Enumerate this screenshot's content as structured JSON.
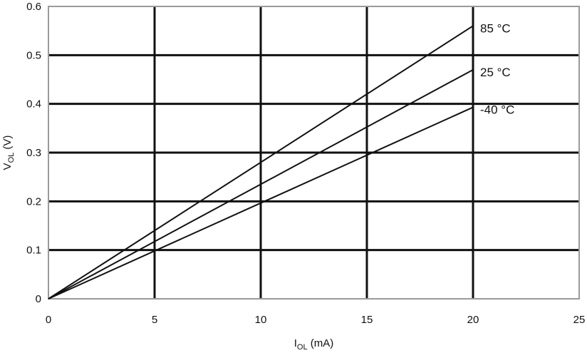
{
  "chart_data": {
    "type": "line",
    "title": "",
    "xlabel": {
      "main": "I",
      "sub": "OL",
      "suffix": " (mA)"
    },
    "ylabel": {
      "main": "V",
      "sub": "OL",
      "suffix": " (V)"
    },
    "xlim": [
      0,
      25
    ],
    "ylim": [
      0,
      0.6
    ],
    "xticks": [
      "0",
      "5",
      "10",
      "15",
      "20",
      "25"
    ],
    "yticks": [
      "0",
      "0.1",
      "0.2",
      "0.3",
      "0.4",
      "0.5",
      "0.6"
    ],
    "grid": true,
    "series": [
      {
        "name": "85 °C",
        "x": [
          0,
          20
        ],
        "y": [
          0,
          0.56
        ]
      },
      {
        "name": "25 °C",
        "x": [
          0,
          20
        ],
        "y": [
          0,
          0.47
        ]
      },
      {
        "name": "-40 °C",
        "x": [
          0,
          20
        ],
        "y": [
          0,
          0.393
        ]
      }
    ]
  }
}
